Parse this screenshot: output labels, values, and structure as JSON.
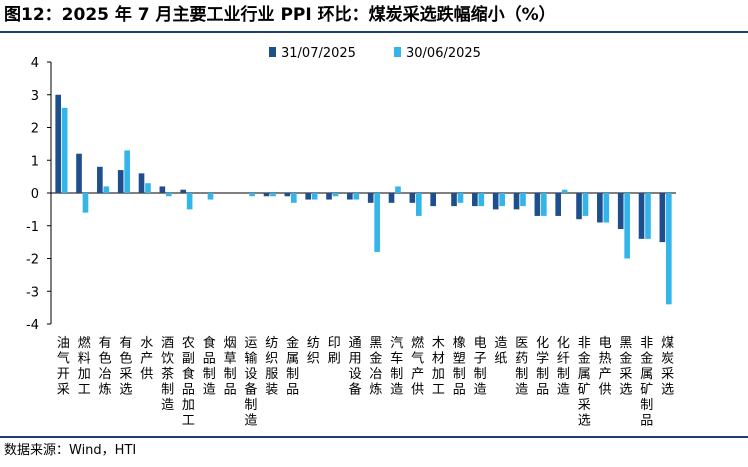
{
  "title": "图12：2025 年 7 月主要工业行业 PPI 环比：煤炭采选跌幅缩小（%）",
  "source": "数据来源：Wind，HTI",
  "colors": {
    "series1": "#1f4e8c",
    "series2": "#33b5ea",
    "rule": "#1f3f73"
  },
  "chart_data": {
    "type": "bar",
    "title": "",
    "xlabel": "",
    "ylabel": "",
    "ylim": [
      -4,
      4
    ],
    "yticks": [
      4,
      3,
      2,
      1,
      0,
      -1,
      -2,
      -3,
      -4
    ],
    "grid": false,
    "legend_position": "top-center",
    "categories": [
      "油气开采",
      "燃料加工",
      "有色冶炼",
      "有色采选",
      "水产供",
      "酒饮茶制造",
      "农副食品加工",
      "食品制造",
      "烟草制品",
      "运输设备制造",
      "纺织服装",
      "金属制品",
      "纺织",
      "印刷",
      "通用设备",
      "黑金冶炼",
      "汽车制造",
      "燃气产供",
      "木材加工",
      "橡塑制品",
      "电子制造",
      "造纸",
      "医药制造",
      "化学制品",
      "化纤制造",
      "非金属矿采选",
      "电热产供",
      "黑金采选",
      "非金属矿制品",
      "煤炭采选"
    ],
    "series": [
      {
        "name": "31/07/2025",
        "values": [
          3.0,
          1.2,
          0.8,
          0.7,
          0.6,
          0.2,
          0.1,
          0.0,
          0.0,
          0.0,
          -0.1,
          -0.1,
          -0.2,
          -0.2,
          -0.2,
          -0.3,
          -0.3,
          -0.3,
          -0.4,
          -0.4,
          -0.4,
          -0.5,
          -0.5,
          -0.7,
          -0.7,
          -0.8,
          -0.9,
          -1.1,
          -1.4,
          -1.5
        ]
      },
      {
        "name": "30/06/2025",
        "values": [
          2.6,
          -0.6,
          0.2,
          1.3,
          0.3,
          -0.1,
          -0.5,
          -0.2,
          0.0,
          -0.1,
          -0.1,
          -0.3,
          -0.2,
          -0.1,
          -0.2,
          -1.8,
          0.2,
          -0.7,
          0.0,
          -0.3,
          -0.4,
          -0.4,
          -0.4,
          -0.7,
          0.1,
          -0.7,
          -0.9,
          -2.0,
          -1.4,
          -3.4
        ]
      }
    ]
  }
}
